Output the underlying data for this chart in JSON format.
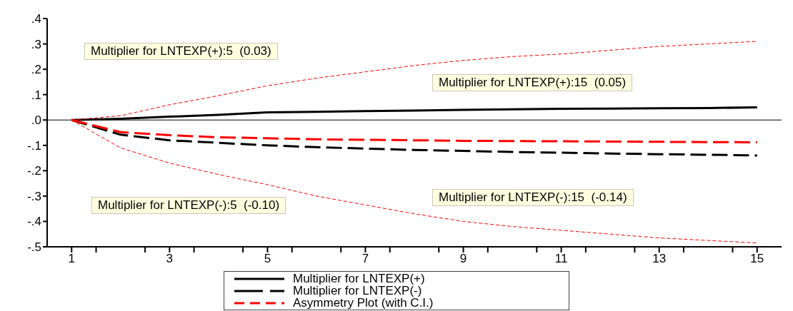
{
  "chart_data": {
    "type": "line",
    "x": [
      1,
      2,
      3,
      4,
      5,
      6,
      7,
      8,
      9,
      10,
      11,
      12,
      13,
      14,
      15
    ],
    "series": [
      {
        "name": "Multiplier for LNTEXP(+)",
        "color": "#000000",
        "line_style": "solid",
        "values": [
          0,
          0.005,
          0.013,
          0.02,
          0.03,
          0.032,
          0.035,
          0.037,
          0.04,
          0.042,
          0.044,
          0.045,
          0.046,
          0.047,
          0.05
        ]
      },
      {
        "name": "Multiplier for LNTEXP(-)",
        "color": "#000000",
        "line_style": "dashed",
        "values": [
          0,
          -0.058,
          -0.08,
          -0.09,
          -0.1,
          -0.107,
          -0.113,
          -0.118,
          -0.122,
          -0.126,
          -0.129,
          -0.132,
          -0.135,
          -0.137,
          -0.14
        ]
      },
      {
        "name": "Asymmetry Plot (with C.I.)",
        "color": "#ff0000",
        "line_style": "dashed",
        "values": [
          0,
          -0.048,
          -0.06,
          -0.068,
          -0.072,
          -0.076,
          -0.078,
          -0.08,
          -0.082,
          -0.083,
          -0.084,
          -0.085,
          -0.086,
          -0.087,
          -0.088
        ]
      },
      {
        "color": "#ff0000",
        "line_style": "dotted",
        "values": [
          0,
          -0.11,
          -0.17,
          -0.215,
          -0.255,
          -0.3,
          -0.335,
          -0.37,
          -0.4,
          -0.42,
          -0.435,
          -0.45,
          -0.465,
          -0.475,
          -0.485
        ]
      },
      {
        "color": "#ff0000",
        "line_style": "dotted",
        "values": [
          0,
          0.017,
          0.06,
          0.096,
          0.135,
          0.165,
          0.19,
          0.215,
          0.235,
          0.25,
          0.26,
          0.275,
          0.29,
          0.3,
          0.31
        ]
      }
    ],
    "xlim": [
      0.5,
      15.5
    ],
    "xticks": [
      {
        "value": 1,
        "label": "1"
      },
      {
        "value": 3,
        "label": "3"
      },
      {
        "value": 5,
        "label": "5"
      },
      {
        "value": 7,
        "label": "7"
      },
      {
        "value": 9,
        "label": "9"
      },
      {
        "value": 11,
        "label": "11"
      },
      {
        "value": 13,
        "label": "13"
      },
      {
        "value": 15,
        "label": "15"
      },
      {
        "value": 1.5,
        "label": null
      },
      {
        "value": 2.5,
        "label": null
      },
      {
        "value": 3.5,
        "label": null
      },
      {
        "value": 4.5,
        "label": null
      },
      {
        "value": 5.5,
        "label": null
      },
      {
        "value": 6.5,
        "label": null
      },
      {
        "value": 7.5,
        "label": null
      },
      {
        "value": 8.5,
        "label": null
      },
      {
        "value": 9.5,
        "label": null
      },
      {
        "value": 10.5,
        "label": null
      },
      {
        "value": 11.5,
        "label": null
      },
      {
        "value": 12.5,
        "label": null
      },
      {
        "value": 13.5,
        "label": null
      },
      {
        "value": 14.5,
        "label": null
      }
    ],
    "ylim": [
      -0.5,
      0.4
    ],
    "yticks": [
      {
        "value": -0.5,
        "label": "-.5"
      },
      {
        "value": -0.4,
        "label": "-.4"
      },
      {
        "value": -0.3,
        "label": "-.3"
      },
      {
        "value": -0.2,
        "label": "-.2"
      },
      {
        "value": -0.1,
        "label": "-.1"
      },
      {
        "value": 0,
        "label": ".0"
      },
      {
        "value": 0.1,
        "label": ".1"
      },
      {
        "value": 0.2,
        "label": ".2"
      },
      {
        "value": 0.3,
        "label": ".3"
      },
      {
        "value": 0.4,
        "label": ".4"
      }
    ],
    "ref_lines": [
      {
        "axis": "y",
        "value": 0,
        "color": "#000000"
      }
    ],
    "annotations": [
      "Multiplier for LNTEXP(+):5  (0.03)",
      "Multiplier for LNTEXP(+):15  (0.05)",
      "Multiplier for LNTEXP(-):5  (-0.10)",
      "Multiplier for LNTEXP(-):15  (-0.14)"
    ],
    "grid": false,
    "legend": "bottom",
    "marker": "none"
  }
}
